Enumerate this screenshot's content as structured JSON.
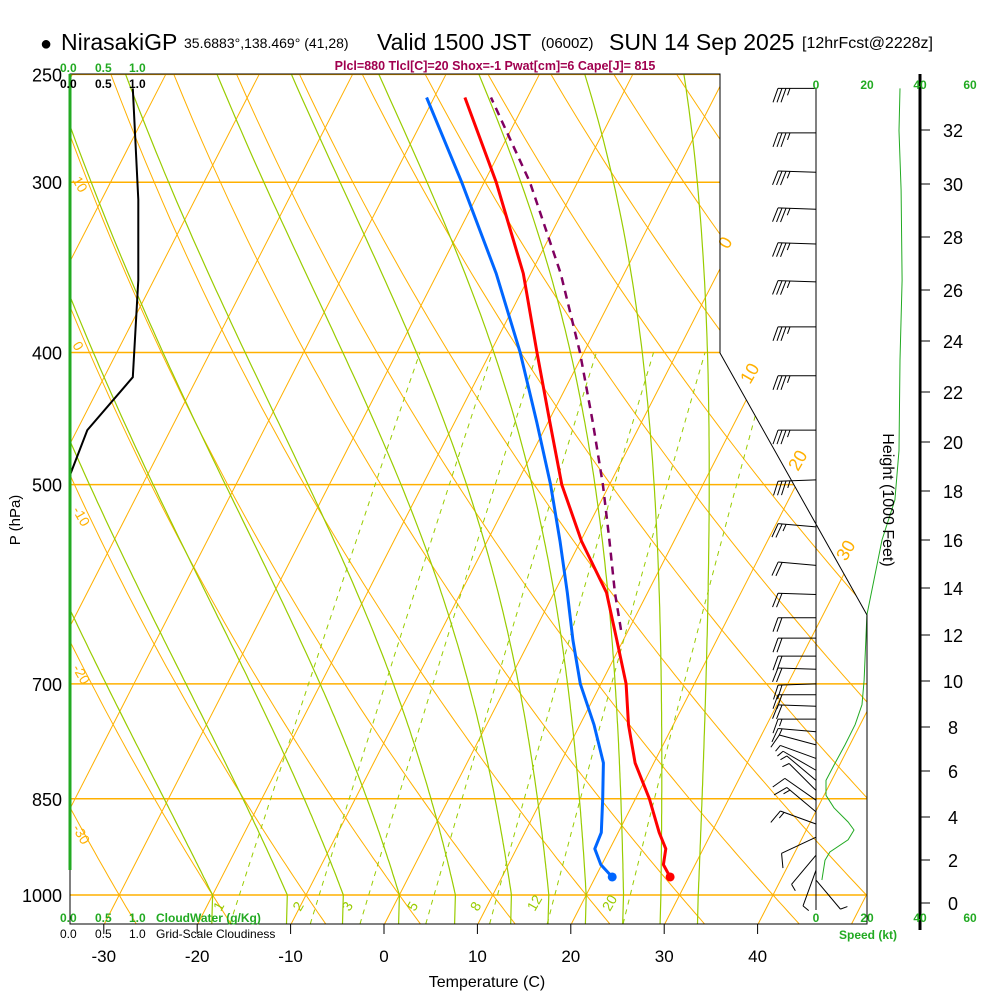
{
  "header": {
    "bullet": "●",
    "station": "NirasakiGP",
    "coords": "35.6883°,138.469° (41,28)",
    "valid": "Valid 1500 JST",
    "utc": "(0600Z)",
    "date": "SUN 14 Sep 2025",
    "forecast": "[12hrFcst@2228z]",
    "indices": "Plcl=880 Tlcl[C]=20 Shox=-1 Pwat[cm]=6 Cape[J]= 815"
  },
  "colors": {
    "temperature": "#ff0000",
    "dewpoint": "#0066ff",
    "parcel": "#800060",
    "isotherm": "#ffb000",
    "moist_adiabat": "#99cc00",
    "speed": "#22aa22",
    "indices": "#a0004f"
  },
  "cloud_panel": {
    "top_green_ticks": [
      "0.0",
      "0.5",
      "1.0"
    ],
    "top_black_ticks": [
      "0.0",
      "0.5",
      "1.0"
    ],
    "bottom_green_ticks": [
      "0.0",
      "0.5",
      "1.0"
    ],
    "bottom_green_label": "CloudWater (g/Kg)",
    "bottom_black_ticks": [
      "0.0",
      "0.5",
      "1.0"
    ],
    "bottom_black_label": "Grid-Scale Cloudiness"
  },
  "speed_panel": {
    "ticks": [
      "0",
      "20",
      "40",
      "60"
    ],
    "label": "Speed (kt)"
  },
  "height_axis": {
    "label": "Height (1000 Feet)",
    "ticks": [
      "0",
      "2",
      "4",
      "6",
      "8",
      "10",
      "12",
      "14",
      "16",
      "18",
      "20",
      "22",
      "24",
      "26",
      "28",
      "30",
      "32"
    ]
  },
  "chart_data": {
    "type": "line",
    "title": "Skew-T log-P sounding",
    "xlabel": "Temperature (C)",
    "ylabel": "P (hPa)",
    "x_ticks": [
      "-30",
      "-20",
      "-10",
      "0",
      "10",
      "20",
      "30",
      "40"
    ],
    "x_tick_values": [
      -30,
      -20,
      -10,
      0,
      10,
      20,
      30,
      40
    ],
    "y_ticks": [
      "250",
      "300",
      "400",
      "500",
      "700",
      "850",
      "1000"
    ],
    "y_tick_values": [
      250,
      300,
      400,
      500,
      700,
      850,
      1000
    ],
    "ylim": [
      1050,
      250
    ],
    "theta_labels": [
      "10",
      "0",
      "-10",
      "-20",
      "-30"
    ],
    "isotherm_labels": [
      "0",
      "10",
      "20",
      "30"
    ],
    "mixing_ratio_labels": [
      "1",
      "2",
      "3",
      "5",
      "8",
      "12",
      "20"
    ],
    "mixing_ratio_values": [
      1,
      2,
      3,
      5,
      8,
      12,
      20
    ],
    "series": [
      {
        "name": "Temperature",
        "pressure": [
          970,
          950,
          925,
          900,
          850,
          800,
          750,
          700,
          650,
          600,
          550,
          500,
          450,
          400,
          350,
          300,
          260
        ],
        "values": [
          28.0,
          26.6,
          26.0,
          24.4,
          21.5,
          18.0,
          15.2,
          12.7,
          9.3,
          5.6,
          0.1,
          -5.1,
          -9.8,
          -15.0,
          -20.8,
          -28.7,
          -36.7
        ]
      },
      {
        "name": "Dewpoint",
        "pressure": [
          970,
          950,
          925,
          900,
          850,
          800,
          750,
          700,
          650,
          600,
          550,
          500,
          450,
          400,
          350,
          300,
          260
        ],
        "values": [
          21.8,
          19.9,
          18.4,
          18.2,
          16.5,
          14.6,
          11.5,
          7.8,
          4.6,
          1.4,
          -2.2,
          -6.3,
          -11.2,
          -16.8,
          -23.7,
          -32.4,
          -40.8
        ]
      },
      {
        "name": "Parcel",
        "pressure": [
          639,
          600,
          550,
          500,
          450,
          400,
          350,
          300,
          260
        ],
        "values": [
          9.2,
          6.5,
          3.1,
          -0.7,
          -5.2,
          -10.4,
          -16.8,
          -25.1,
          -33.9
        ]
      }
    ],
    "surface_points": {
      "temperature": 28.0,
      "dewpoint": 21.8,
      "pressure": 970
    },
    "cloudiness": {
      "pressure": [
        256,
        309,
        354,
        417,
        456,
        492
      ],
      "values": [
        0.91,
        0.99,
        0.99,
        0.91,
        0.25,
        0.0
      ]
    },
    "cloud_water": {
      "pressure": [
        1050,
        250
      ],
      "values": [
        0,
        0
      ]
    },
    "wind_speed_profile": {
      "pressure": [
        256,
        275,
        304,
        354,
        405,
        472,
        513,
        549,
        602,
        623,
        696,
        725,
        750,
        776,
        803,
        824,
        845,
        863,
        884,
        896,
        911,
        930,
        943,
        975
      ],
      "values": [
        32.7,
        32.3,
        33.1,
        33.5,
        32.7,
        32.3,
        30.7,
        25.7,
        21.4,
        19.8,
        18.7,
        17.9,
        15.2,
        11.3,
        7.0,
        3.9,
        3.9,
        7.0,
        12.5,
        14.8,
        12.5,
        5.4,
        3.5,
        2.3
      ]
    },
    "wind_barbs": [
      {
        "p": 256,
        "spd": 35,
        "dir": 270
      },
      {
        "p": 276,
        "spd": 35,
        "dir": 270
      },
      {
        "p": 295,
        "spd": 35,
        "dir": 272
      },
      {
        "p": 314,
        "spd": 35,
        "dir": 272
      },
      {
        "p": 333,
        "spd": 35,
        "dir": 272
      },
      {
        "p": 355,
        "spd": 35,
        "dir": 272
      },
      {
        "p": 383,
        "spd": 35,
        "dir": 270
      },
      {
        "p": 416,
        "spd": 35,
        "dir": 270
      },
      {
        "p": 456,
        "spd": 35,
        "dir": 270
      },
      {
        "p": 496,
        "spd": 35,
        "dir": 268
      },
      {
        "p": 537,
        "spd": 25,
        "dir": 275
      },
      {
        "p": 573,
        "spd": 20,
        "dir": 275
      },
      {
        "p": 602,
        "spd": 20,
        "dir": 272
      },
      {
        "p": 626,
        "spd": 20,
        "dir": 270
      },
      {
        "p": 648,
        "spd": 20,
        "dir": 270
      },
      {
        "p": 668,
        "spd": 20,
        "dir": 270
      },
      {
        "p": 683,
        "spd": 20,
        "dir": 272
      },
      {
        "p": 700,
        "spd": 20,
        "dir": 268
      },
      {
        "p": 713,
        "spd": 20,
        "dir": 270
      },
      {
        "p": 727,
        "spd": 18,
        "dir": 272
      },
      {
        "p": 743,
        "spd": 15,
        "dir": 270
      },
      {
        "p": 759,
        "spd": 15,
        "dir": 275
      },
      {
        "p": 776,
        "spd": 10,
        "dir": 285
      },
      {
        "p": 794,
        "spd": 5,
        "dir": 290
      },
      {
        "p": 810,
        "spd": 5,
        "dir": 300
      },
      {
        "p": 824,
        "spd": 5,
        "dir": 310
      },
      {
        "p": 838,
        "spd": 5,
        "dir": 315
      },
      {
        "p": 852,
        "spd": 10,
        "dir": 305
      },
      {
        "p": 869,
        "spd": 15,
        "dir": 310
      },
      {
        "p": 887,
        "spd": 15,
        "dir": 290
      },
      {
        "p": 907,
        "spd": 10,
        "dir": 245
      },
      {
        "p": 935,
        "spd": 5,
        "dir": 220
      },
      {
        "p": 959,
        "spd": 5,
        "dir": 200
      },
      {
        "p": 975,
        "spd": 5,
        "dir": 140
      }
    ]
  }
}
